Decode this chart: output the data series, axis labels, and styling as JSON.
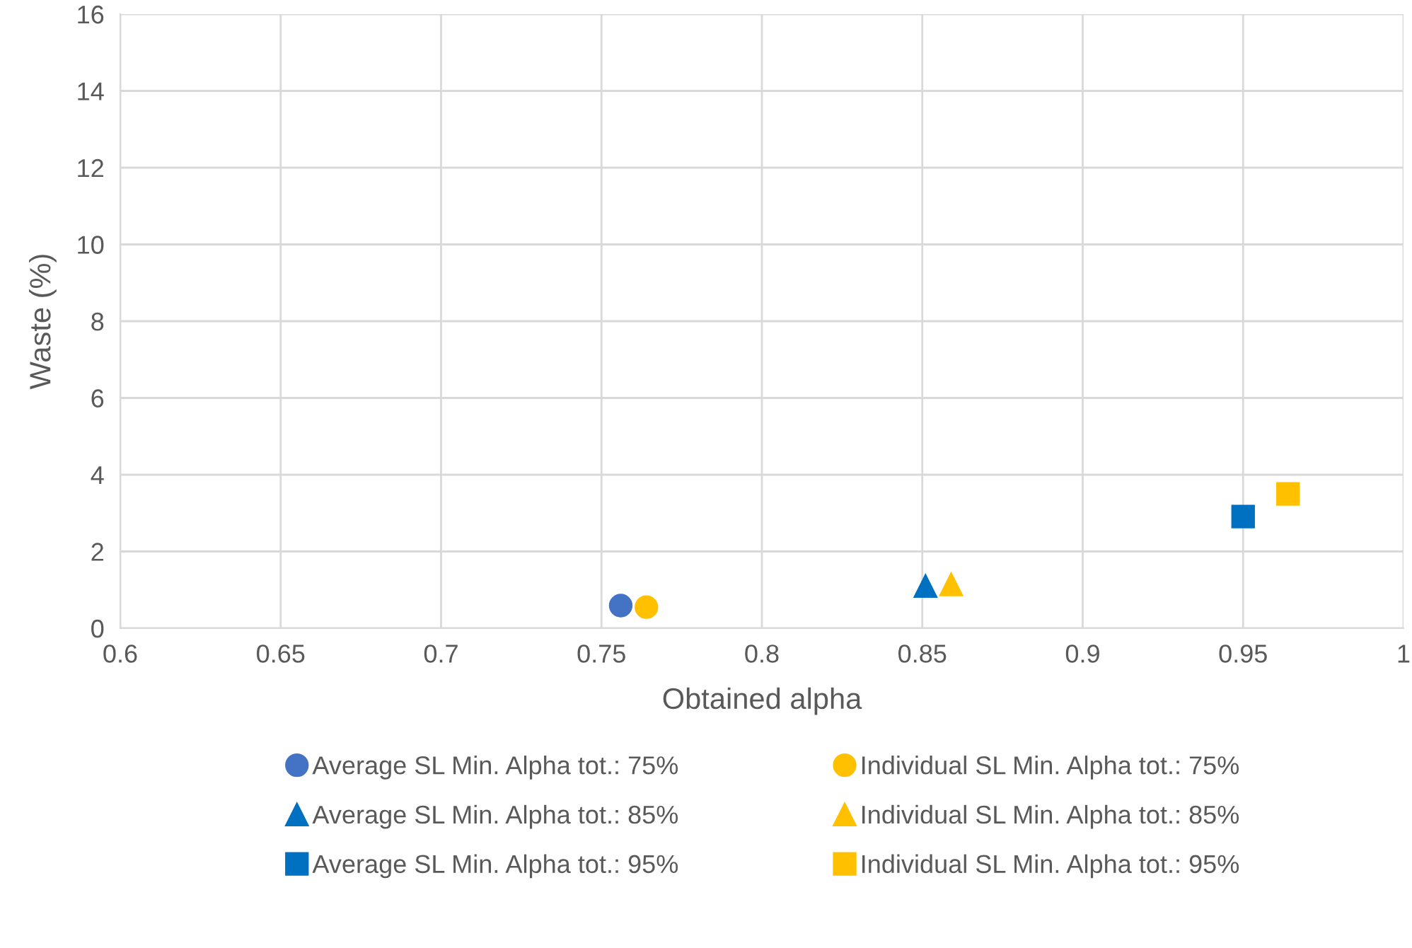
{
  "chart_data": {
    "type": "scatter",
    "xlabel": "Obtained alpha",
    "ylabel": "Waste (%)",
    "xlim": [
      0.6,
      1
    ],
    "xticks": [
      0.6,
      0.65,
      0.7,
      0.75,
      0.8,
      0.85,
      0.9,
      0.95,
      1
    ],
    "ylim": [
      0,
      16
    ],
    "yticks": [
      0,
      2,
      4,
      6,
      8,
      10,
      12,
      14,
      16
    ],
    "grid": true,
    "legend": "bottom",
    "series": [
      {
        "name": "Average SL Min. Alpha tot.: 75%",
        "color": "#4472c4",
        "marker": "circle",
        "x": [
          0.756
        ],
        "values": [
          0.59
        ]
      },
      {
        "name": "Individual SL Min. Alpha tot.: 75%",
        "color": "#ffc000",
        "marker": "circle",
        "x": [
          0.764
        ],
        "values": [
          0.55
        ]
      },
      {
        "name": "Average SL Min. Alpha tot.: 85%",
        "color": "#0070c0",
        "marker": "triangle",
        "x": [
          0.851
        ],
        "values": [
          1.1
        ]
      },
      {
        "name": "Individual SL Min. Alpha tot.: 85%",
        "color": "#ffc000",
        "marker": "triangle",
        "x": [
          0.859
        ],
        "values": [
          1.14
        ]
      },
      {
        "name": "Average SL Min. Alpha tot.: 95%",
        "color": "#0070c0",
        "marker": "square",
        "x": [
          0.95
        ],
        "values": [
          2.91
        ]
      },
      {
        "name": "Individual SL Min. Alpha tot.: 95%",
        "color": "#ffc000",
        "marker": "square",
        "x": [
          0.964
        ],
        "values": [
          3.5
        ]
      }
    ]
  }
}
